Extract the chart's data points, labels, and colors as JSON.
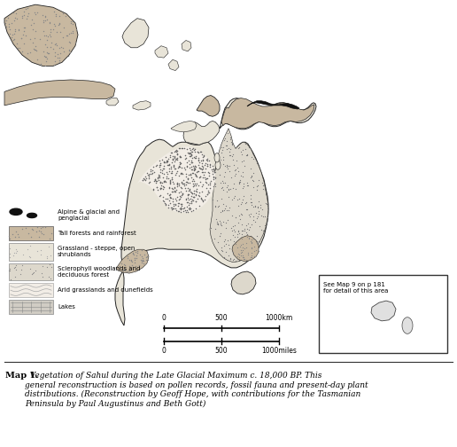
{
  "bg_color": "#ffffff",
  "map_bg": "#ffffff",
  "caption_bold": "Map 1.",
  "caption_italic": "  Vegetation of Sahul during the Late Glacial Maximum c. 18,000 BP. This\ngeneral reconstruction is based on pollen records, fossil fauna and present-day plant\ndistributions. (Reconstruction by Geoff Hope, with contributions for the Tasmanian\nPeninsula by Paul Augustinus and Beth Gott)",
  "legend": [
    {
      "label": "Alpine & glacial and\npenglacial",
      "style": "alpine"
    },
    {
      "label": "Tall forests and rainforest",
      "style": "forest"
    },
    {
      "label": "Grassland - steppe, open\nshrublands",
      "style": "grassland"
    },
    {
      "label": "Sclerophyll woodlands and\ndeciduous forest",
      "style": "sclerophyll"
    },
    {
      "label": "Arid grasslands and dunefields",
      "style": "arid"
    },
    {
      "label": "Lakes",
      "style": "lakes"
    }
  ],
  "inset_text": "See Map 9 on p 181\nfor detail of this area",
  "scale_labels_km": [
    "0",
    "500",
    "1000km"
  ],
  "scale_labels_miles": [
    "0",
    "500",
    "1000miles"
  ],
  "colors": {
    "forest_fill": "#c8b8a0",
    "grassland_fill": "#e8e4d8",
    "sclerophyll_fill": "#ddd8cc",
    "arid_fill": "#f2ede6",
    "lakes_fill": "#d0ccc4",
    "land_outline": "#222222",
    "land_bg": "#eeead8",
    "water_bg": "#ffffff"
  }
}
